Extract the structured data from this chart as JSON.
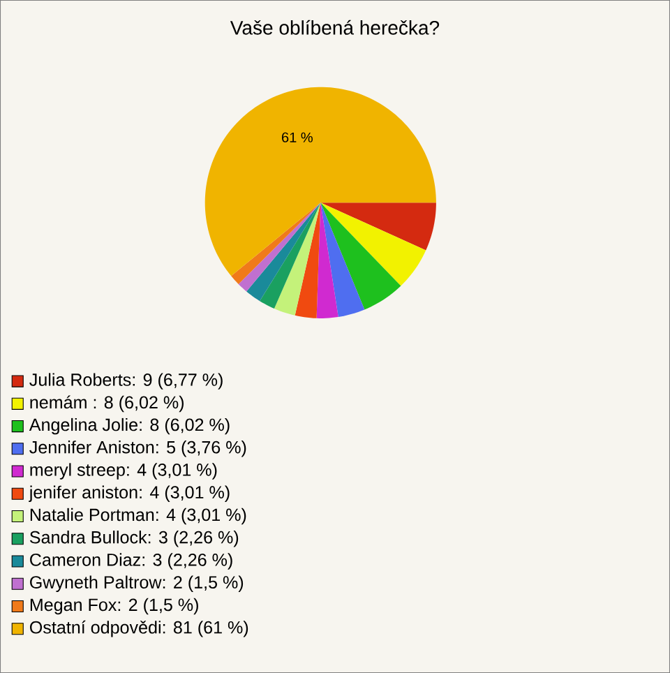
{
  "chart_data": {
    "type": "pie",
    "title": "Vaše oblíbená herečka?",
    "categories": [
      "Julia Roberts: 9 (6,77 %)",
      "nemám : 8 (6,02 %)",
      "Angelina Jolie: 8 (6,02 %)",
      "Jennifer Aniston: 5 (3,76 %)",
      "meryl streep: 4 (3,01 %)",
      "jenifer aniston: 4 (3,01 %)",
      "Natalie Portman: 4 (3,01 %)",
      "Sandra Bullock: 3 (2,26 %)",
      "Cameron Diaz: 3 (2,26 %)",
      "Gwyneth Paltrow: 2 (1,5 %)",
      "Megan Fox: 2 (1,5 %)",
      "Ostatní odpovědi: 81 (61 %)"
    ],
    "values": [
      6.77,
      6.02,
      6.02,
      3.76,
      3.01,
      3.01,
      3.01,
      2.26,
      2.26,
      1.5,
      1.5,
      61
    ],
    "value_labels": [
      null,
      null,
      null,
      null,
      null,
      null,
      null,
      null,
      null,
      null,
      null,
      "61 %"
    ],
    "colors": [
      "#d42a10",
      "#f2f200",
      "#1ec01e",
      "#4f6ef0",
      "#d02ad0",
      "#f04a10",
      "#c4f27a",
      "#1aa060",
      "#1a8a9a",
      "#c070d0",
      "#f07a1a",
      "#f0b400"
    ],
    "legend": "bottom"
  }
}
